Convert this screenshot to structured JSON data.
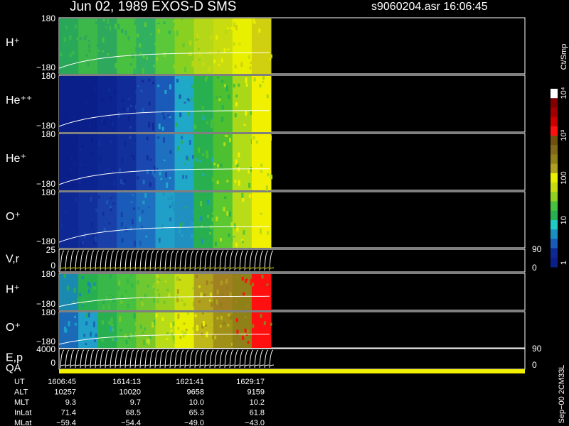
{
  "chart_data": {
    "type": "spectrogram",
    "title": "Jun 02, 1989   EXOS-D SMS",
    "file_label": "s9060204.asr  16:06:45",
    "panels": [
      {
        "label": "H⁺",
        "top": "180",
        "bottom": "−180",
        "kind": "spectrum",
        "colors": [
          "#2aa85a",
          "#3cb84a",
          "#2ea85c",
          "#48c040",
          "#30b060",
          "#5ac838",
          "#8ad020",
          "#b4d818",
          "#c8dc10",
          "#e8f000",
          "#d0d010"
        ]
      },
      {
        "label": "He⁺⁺",
        "top": "180",
        "bottom": "−180",
        "kind": "spectrum",
        "colors": [
          "#0a1f8a",
          "#0a1f8a",
          "#0c2490",
          "#102a98",
          "#1840a8",
          "#1a5ab8",
          "#20a8c8",
          "#28b050",
          "#4cc030",
          "#a8d818",
          "#f0f000"
        ]
      },
      {
        "label": "He⁺",
        "top": "180",
        "bottom": "−180",
        "kind": "spectrum",
        "colors": [
          "#0a1f8a",
          "#0c2490",
          "#0e2894",
          "#12309c",
          "#1a48b0",
          "#1e70c0",
          "#20a8c8",
          "#28b050",
          "#4cc030",
          "#b0dc18",
          "#f0f000"
        ]
      },
      {
        "label": "O⁺",
        "top": "180",
        "bottom": "−180",
        "kind": "spectrum",
        "colors": [
          "#0e2894",
          "#12309c",
          "#1840a8",
          "#1a5ab8",
          "#1e70c0",
          "#20a0c8",
          "#2090c0",
          "#28b050",
          "#5cc830",
          "#b8dc18",
          "#f0f000"
        ]
      },
      {
        "label": "V,r",
        "top": "25",
        "bottom": "0",
        "right_top": "90",
        "right_bottom": "0",
        "kind": "trace",
        "colors": [
          "#ffffff",
          "#f0f000"
        ]
      },
      {
        "label": "H⁺",
        "top": "180",
        "bottom": "−180",
        "kind": "spectrum",
        "colors": [
          "#1a8ab0",
          "#28b050",
          "#38b848",
          "#48c040",
          "#70c830",
          "#98d020",
          "#c8dc10",
          "#b0a020",
          "#a08020",
          "#908018",
          "#ff1010"
        ]
      },
      {
        "label": "O⁺",
        "top": "180",
        "bottom": "−180",
        "kind": "spectrum",
        "colors": [
          "#1a6ab8",
          "#20a0c8",
          "#28b050",
          "#48c040",
          "#7cc828",
          "#b8dc18",
          "#e8f000",
          "#c0b818",
          "#a09018",
          "#908018",
          "#ff1010"
        ]
      },
      {
        "label": "E,p",
        "top": "4000",
        "bottom": "0",
        "right_top": "90",
        "right_bottom": "0",
        "kind": "trace",
        "colors": [
          "#ffffff",
          "#ffffff"
        ]
      }
    ],
    "qa_label": "QA",
    "qa_color": "#f0f000",
    "colorbar": {
      "label": "Ct/Smp",
      "ticks": [
        "1",
        "10",
        "100",
        "10³",
        "10⁴"
      ],
      "colors": [
        "#ffffff",
        "#800000",
        "#a00000",
        "#c80000",
        "#ff1010",
        "#705010",
        "#806818",
        "#908018",
        "#b0a020",
        "#e8f000",
        "#c8dc10",
        "#90d020",
        "#48c040",
        "#28b050",
        "#20c8c8",
        "#1a90c0",
        "#1a5ab8",
        "#0e2894",
        "#0a1f8a"
      ]
    },
    "table": {
      "row_labels": [
        "UT",
        "ALT",
        "MLT",
        "InLat",
        "MLat"
      ],
      "rows": [
        [
          "1606:45",
          "1614:13",
          "1621:41",
          "1629:17"
        ],
        [
          "10257",
          "10020",
          "9658",
          "9159"
        ],
        [
          "9.3",
          "9.7",
          "10.0",
          "10.2"
        ],
        [
          "71.4",
          "68.5",
          "65.3",
          "61.8"
        ],
        [
          "−59.4",
          "−54.4",
          "−49.0",
          "−43.0"
        ]
      ]
    },
    "side_note": "Sep−00 2CM33L"
  }
}
